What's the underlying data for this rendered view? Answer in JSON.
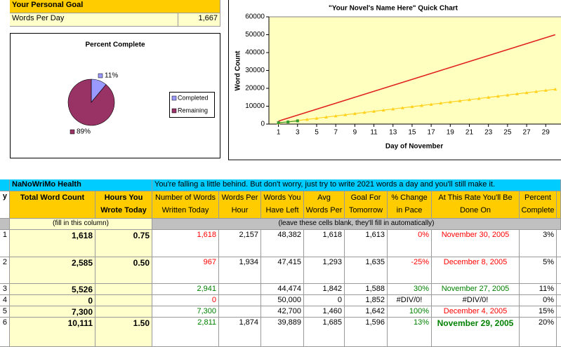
{
  "goal": {
    "title": "Your Personal Goal",
    "label": "Words Per Day",
    "value": "1,667"
  },
  "chart_data": [
    {
      "type": "pie",
      "title": "Percent Complete",
      "categories": [
        "Completed",
        "Remaining"
      ],
      "values": [
        11,
        89
      ],
      "value_labels": [
        "11%",
        "89%"
      ],
      "colors": [
        "#9999FF",
        "#993366"
      ]
    },
    {
      "type": "line",
      "title": "\"Your Novel's Name Here\" Quick Chart",
      "x_label": "Day of November",
      "y_label": "Word Count",
      "x": [
        1,
        2,
        3,
        4,
        5,
        6,
        7,
        8,
        9,
        10,
        11,
        12,
        13,
        14,
        15,
        16,
        17,
        18,
        19,
        20,
        21,
        22,
        23,
        24,
        25,
        26,
        27,
        28,
        29,
        30
      ],
      "series": [
        {
          "color": "#E0201B",
          "values": [
            1667,
            3334,
            5001,
            6668,
            8335,
            10002,
            11669,
            13336,
            15003,
            16670,
            18337,
            20004,
            21671,
            23338,
            25005,
            26672,
            28339,
            30006,
            31673,
            33340,
            35007,
            36674,
            38341,
            40008,
            41675,
            43342,
            45009,
            46676,
            48343,
            50010
          ]
        },
        {
          "color": "#FFD21F",
          "values": [
            650,
            1300,
            1950,
            2600,
            3250,
            3900,
            4550,
            5200,
            5850,
            6500,
            7150,
            7800,
            8450,
            9100,
            9750,
            10400,
            11050,
            11700,
            12350,
            13000,
            13650,
            14300,
            14950,
            15600,
            16250,
            16900,
            17550,
            18200,
            18850,
            19500
          ]
        },
        {
          "color": "#339933",
          "values": [
            800,
            1200,
            1800,
            null,
            null,
            null,
            null,
            null,
            null,
            null,
            null,
            null,
            null,
            null,
            null,
            null,
            null,
            null,
            null,
            null,
            null,
            null,
            null,
            null,
            null,
            null,
            null,
            null,
            null,
            null
          ]
        }
      ],
      "xlim": [
        0,
        30.6
      ],
      "ylim": [
        0,
        60000
      ],
      "xticks": [
        1,
        3,
        5,
        7,
        9,
        11,
        13,
        15,
        17,
        19,
        21,
        23,
        25,
        27,
        29
      ],
      "yticks": [
        0,
        10000,
        20000,
        30000,
        40000,
        50000,
        60000
      ]
    }
  ],
  "table": {
    "title": "NaNoWriMo Health",
    "message": "You're falling a little behind.  But don't worry, just try to write 2021 words a day and you'll still make it.",
    "headers": [
      "y",
      "Total Word Count",
      "Hours You Wrote Today",
      "Number of Words Written Today",
      "Words Per Hour",
      "Words You Have Left",
      "Avg Words Per Day",
      "Goal For Tomorrow",
      "% Change in Pace",
      "At This Rate You'll Be Done On",
      "Percent Complete"
    ],
    "notes": [
      "(fill in this column)",
      "(leave these cells blank, they'll fill in automatically)"
    ],
    "rows": [
      [
        "1",
        "1,618",
        "0.75",
        "1,618",
        "2,157",
        "48,382",
        "1,618",
        "1,613",
        "0%",
        "November 30, 2005",
        "3%"
      ],
      [
        "2",
        "2,585",
        "0.50",
        "967",
        "1,934",
        "47,415",
        "1,293",
        "1,635",
        "-25%",
        "December 8, 2005",
        "5%"
      ],
      [
        "3",
        "5,526",
        null,
        "2,941",
        null,
        "44,474",
        "1,842",
        "1,588",
        "30%",
        "November 27, 2005",
        "11%"
      ],
      [
        "4",
        "0",
        null,
        "0",
        null,
        "50,000",
        "0",
        "1,852",
        "#DIV/0!",
        "#DIV/0!",
        "0%"
      ],
      [
        "5",
        "7,300",
        null,
        "7,300",
        null,
        "42,700",
        "1,460",
        "1,642",
        "100%",
        "December 4, 2005",
        "15%"
      ],
      [
        "6",
        "10,111",
        "1.50",
        "2,811",
        "1,874",
        "39,889",
        "1,685",
        "1,596",
        "13%",
        "November 29, 2005",
        "20%"
      ]
    ]
  }
}
